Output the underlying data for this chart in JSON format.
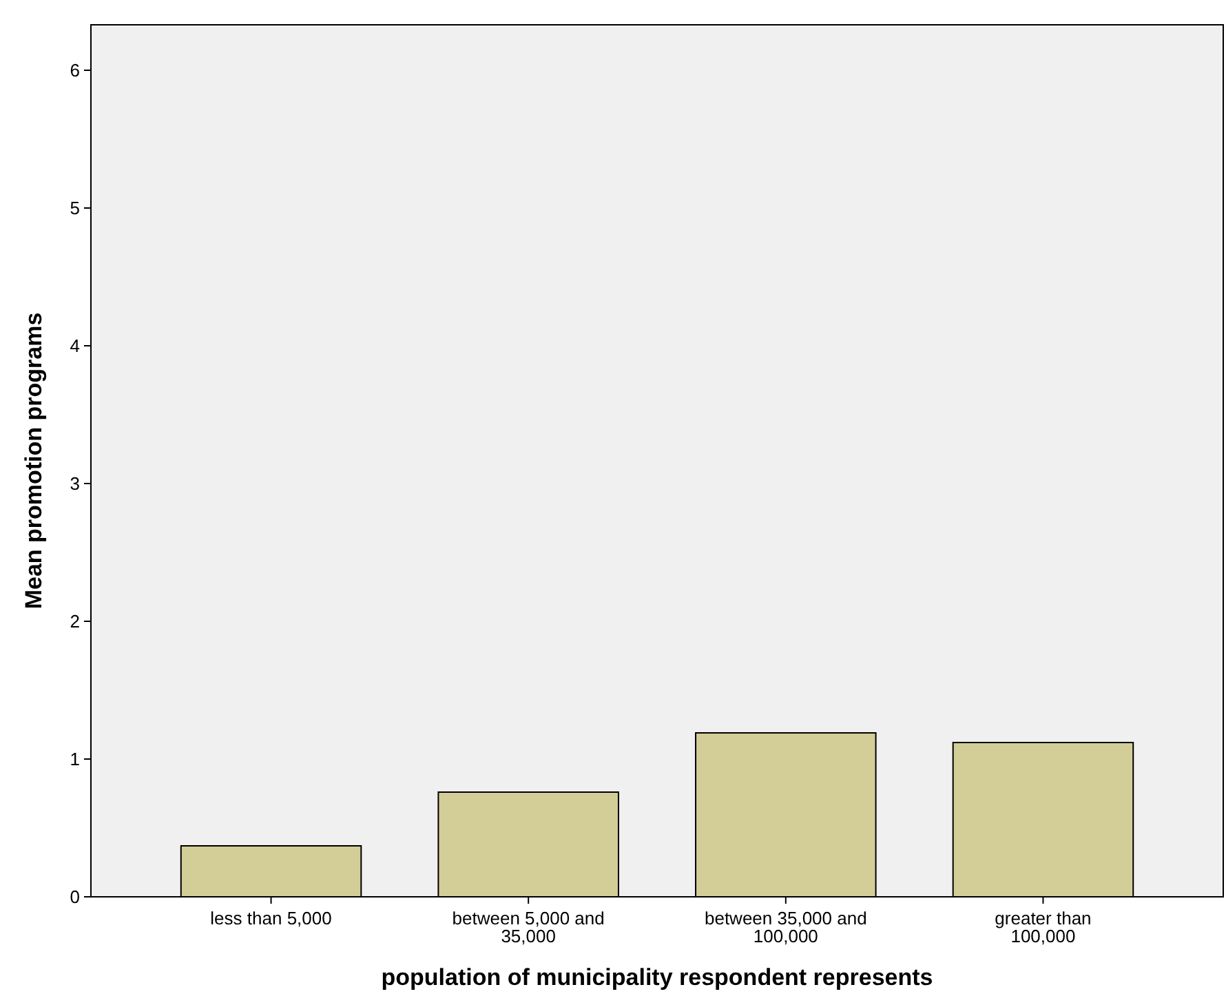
{
  "chart_data": {
    "type": "bar",
    "xlabel": "population of municipality respondent represents",
    "ylabel": "Mean promotion programs",
    "categories": [
      "less than 5,000",
      "between 5,000 and 35,000",
      "between 35,000 and 100,000",
      "greater than 100,000"
    ],
    "values": [
      0.37,
      0.76,
      1.19,
      1.12
    ],
    "color": "#d3ce97",
    "ylim": [
      0,
      6.33
    ],
    "yticks": [
      0,
      1,
      2,
      3,
      4,
      5,
      6
    ],
    "grid": false
  }
}
